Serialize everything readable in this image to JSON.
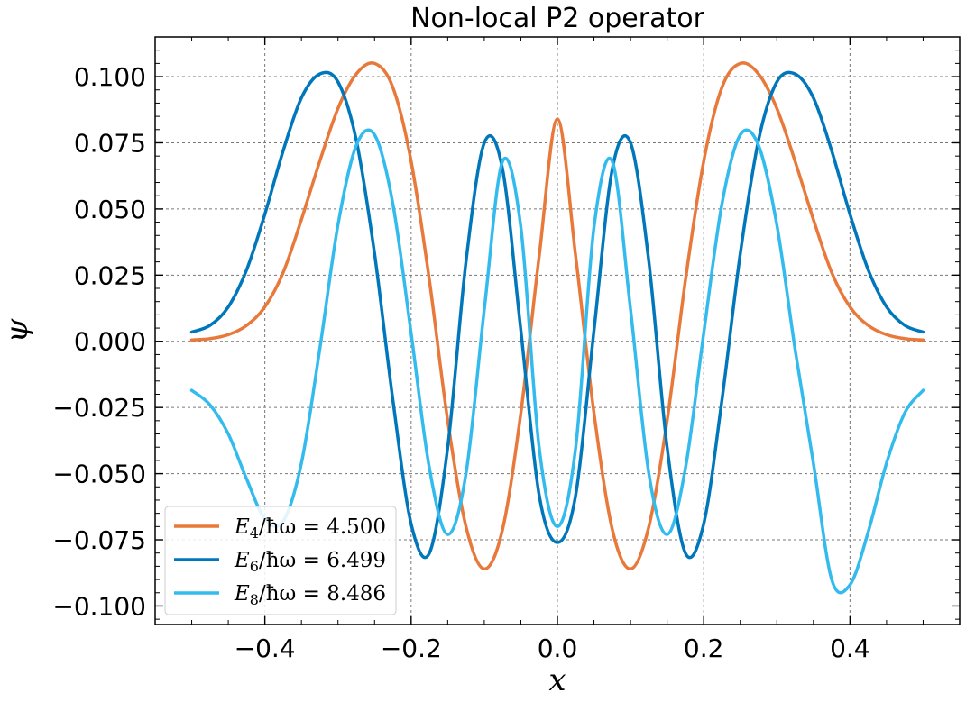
{
  "chart_data": {
    "type": "line",
    "title": "Non-local P2 operator",
    "xlabel": "x",
    "ylabel": "ψ",
    "xlim": [
      -0.55,
      0.55
    ],
    "ylim": [
      -0.107,
      0.115
    ],
    "xticks": [
      -0.4,
      -0.2,
      0.0,
      0.2,
      0.4
    ],
    "xtick_labels": [
      "−0.4",
      "−0.2",
      "0.0",
      "0.2",
      "0.4"
    ],
    "yticks": [
      0.1,
      0.075,
      0.05,
      0.025,
      0.0,
      -0.025,
      -0.05,
      -0.075,
      -0.1
    ],
    "ytick_labels": [
      "0.100",
      "0.075",
      "0.050",
      "0.025",
      "0.000",
      "−0.025",
      "−0.050",
      "−0.075",
      "−0.100"
    ],
    "grid": true,
    "legend_position": "lower-left",
    "x": [
      -0.5,
      -0.475,
      -0.45,
      -0.425,
      -0.4,
      -0.375,
      -0.35,
      -0.325,
      -0.3,
      -0.275,
      -0.25,
      -0.225,
      -0.2,
      -0.175,
      -0.15,
      -0.125,
      -0.1,
      -0.075,
      -0.05,
      -0.025,
      0.0,
      0.025,
      0.05,
      0.075,
      0.1,
      0.125,
      0.15,
      0.175,
      0.2,
      0.225,
      0.25,
      0.275,
      0.3,
      0.325,
      0.35,
      0.375,
      0.4,
      0.425,
      0.45,
      0.475,
      0.5
    ],
    "series": [
      {
        "name": "E4/ħω = 4.500",
        "legend_main": "E",
        "legend_sub": "4",
        "legend_rest": "/ħω = 4.500",
        "color": "#E8793A",
        "values": [
          0.0005,
          0.001,
          0.0025,
          0.006,
          0.013,
          0.026,
          0.046,
          0.068,
          0.088,
          0.101,
          0.105,
          0.096,
          0.068,
          0.023,
          -0.03,
          -0.07,
          -0.086,
          -0.071,
          -0.027,
          0.032,
          0.084,
          0.032,
          -0.027,
          -0.071,
          -0.086,
          -0.07,
          -0.03,
          0.023,
          0.068,
          0.096,
          0.105,
          0.101,
          0.088,
          0.068,
          0.046,
          0.026,
          0.013,
          0.006,
          0.0025,
          0.001,
          0.0005
        ]
      },
      {
        "name": "E6/ħω = 6.499",
        "legend_main": "E",
        "legend_sub": "6",
        "legend_rest": "/ħω = 6.499",
        "color": "#0077BB",
        "values": [
          0.0035,
          0.006,
          0.013,
          0.027,
          0.048,
          0.072,
          0.092,
          0.101,
          0.098,
          0.076,
          0.033,
          -0.022,
          -0.069,
          -0.08,
          -0.04,
          0.03,
          0.075,
          0.065,
          0.004,
          -0.058,
          -0.076,
          -0.058,
          0.004,
          0.065,
          0.075,
          0.03,
          -0.04,
          -0.08,
          -0.069,
          -0.022,
          0.033,
          0.076,
          0.098,
          0.101,
          0.092,
          0.072,
          0.048,
          0.027,
          0.013,
          0.006,
          0.0035
        ]
      },
      {
        "name": "E8/ħω = 8.486",
        "legend_main": "E",
        "legend_sub": "8",
        "legend_rest": "/ħω = 8.486",
        "color": "#33BBEE",
        "values": [
          -0.0185,
          -0.024,
          -0.035,
          -0.052,
          -0.067,
          -0.068,
          -0.046,
          -0.003,
          0.044,
          0.074,
          0.078,
          0.052,
          0.003,
          -0.048,
          -0.073,
          -0.05,
          0.012,
          0.068,
          0.043,
          -0.04,
          -0.07,
          -0.04,
          0.043,
          0.068,
          0.012,
          -0.05,
          -0.073,
          -0.048,
          0.003,
          0.052,
          0.078,
          0.074,
          0.044,
          -0.003,
          -0.046,
          -0.09,
          -0.092,
          -0.072,
          -0.046,
          -0.027,
          -0.0185
        ]
      }
    ]
  }
}
